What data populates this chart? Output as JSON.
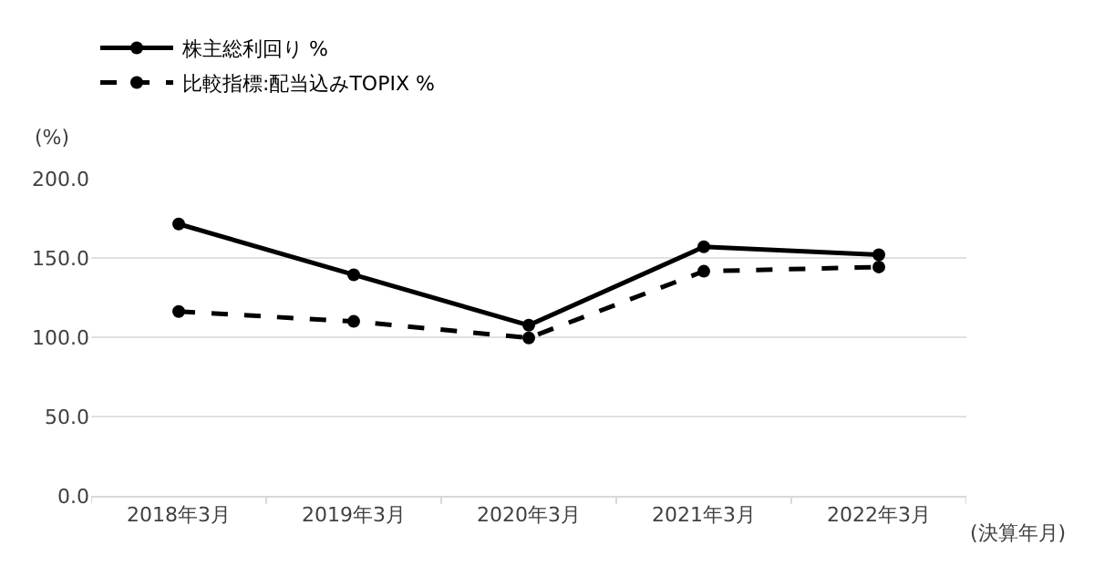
{
  "chart_data": {
    "type": "line",
    "ylabel": "(%)",
    "xlabel": "(決算年月)",
    "categories": [
      "2018年3月",
      "2019年3月",
      "2020年3月",
      "2021年3月",
      "2022年3月"
    ],
    "series": [
      {
        "name": "株主総利回り %",
        "color": "#000000",
        "values": [
          171.4,
          139.4,
          107.6,
          157.0,
          152.0
        ],
        "line_style": "solid"
      },
      {
        "name": "比較指標:配当込みTOPIX %",
        "color": "#000000",
        "values": [
          116.2,
          110.0,
          99.6,
          141.6,
          144.3
        ],
        "line_style": "dashed"
      }
    ],
    "ylim": [
      0,
      200
    ],
    "yticks": [
      {
        "value": 0,
        "label": "0.0"
      },
      {
        "value": 50,
        "label": "50.0"
      },
      {
        "value": 100,
        "label": "100.0"
      },
      {
        "value": 150,
        "label": "150.0"
      },
      {
        "value": 200,
        "label": "200.0"
      }
    ],
    "grid": "y",
    "legend": "top left",
    "marker": "circle"
  }
}
